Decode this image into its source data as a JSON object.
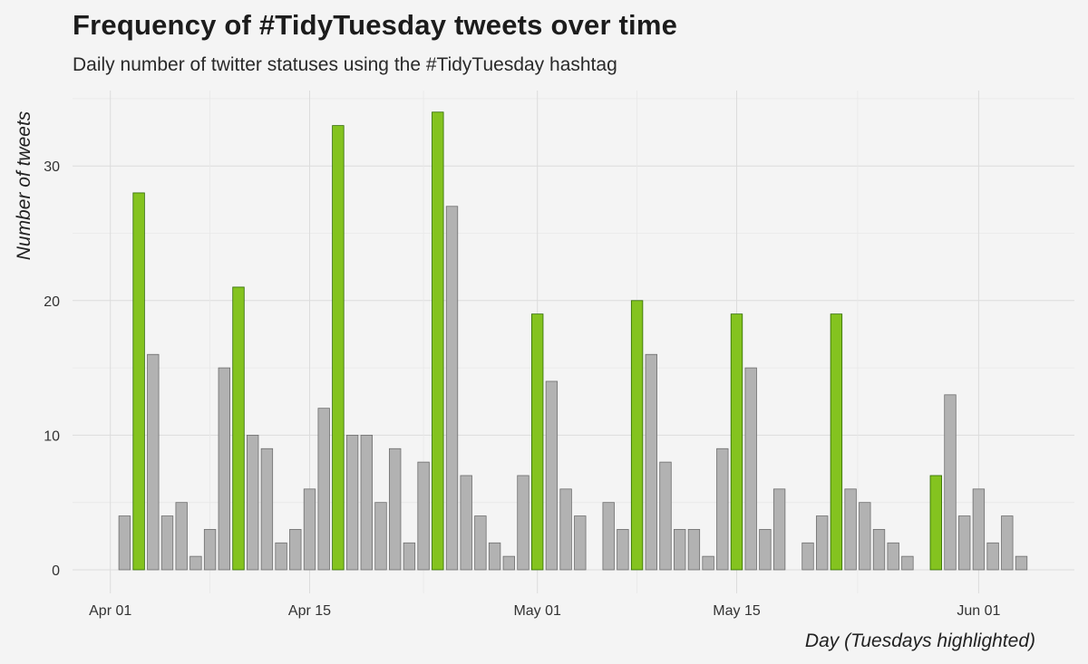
{
  "chart_data": {
    "type": "bar",
    "title": "Frequency of #TidyTuesday tweets over time",
    "subtitle": "Daily number of twitter statuses using the #TidyTuesday hashtag",
    "xlabel": "Day (Tuesdays highlighted)",
    "ylabel": "Number of tweets",
    "ylim": [
      0,
      35
    ],
    "yticks": [
      0,
      10,
      20,
      30
    ],
    "xlim": [
      "2018-03-31",
      "2018-06-06"
    ],
    "xticks": [
      {
        "date": "2018-04-01",
        "label": "Apr 01"
      },
      {
        "date": "2018-04-15",
        "label": "Apr 15"
      },
      {
        "date": "2018-05-01",
        "label": "May 01"
      },
      {
        "date": "2018-05-15",
        "label": "May 15"
      },
      {
        "date": "2018-06-01",
        "label": "Jun 01"
      }
    ],
    "grid": true,
    "highlight_color": "#84c31f",
    "highlight_border": "#2f6a00",
    "base_color": "#b2b2b2",
    "base_border": "#6e6e6e",
    "bars": [
      {
        "date": "2018-04-02",
        "value": 4,
        "tuesday": false
      },
      {
        "date": "2018-04-03",
        "value": 28,
        "tuesday": true
      },
      {
        "date": "2018-04-04",
        "value": 16,
        "tuesday": false
      },
      {
        "date": "2018-04-05",
        "value": 4,
        "tuesday": false
      },
      {
        "date": "2018-04-06",
        "value": 5,
        "tuesday": false
      },
      {
        "date": "2018-04-07",
        "value": 1,
        "tuesday": false
      },
      {
        "date": "2018-04-08",
        "value": 3,
        "tuesday": false
      },
      {
        "date": "2018-04-09",
        "value": 15,
        "tuesday": false
      },
      {
        "date": "2018-04-10",
        "value": 21,
        "tuesday": true
      },
      {
        "date": "2018-04-11",
        "value": 10,
        "tuesday": false
      },
      {
        "date": "2018-04-12",
        "value": 9,
        "tuesday": false
      },
      {
        "date": "2018-04-13",
        "value": 2,
        "tuesday": false
      },
      {
        "date": "2018-04-14",
        "value": 3,
        "tuesday": false
      },
      {
        "date": "2018-04-15",
        "value": 6,
        "tuesday": false
      },
      {
        "date": "2018-04-16",
        "value": 12,
        "tuesday": false
      },
      {
        "date": "2018-04-17",
        "value": 33,
        "tuesday": true
      },
      {
        "date": "2018-04-18",
        "value": 10,
        "tuesday": false
      },
      {
        "date": "2018-04-19",
        "value": 10,
        "tuesday": false
      },
      {
        "date": "2018-04-20",
        "value": 5,
        "tuesday": false
      },
      {
        "date": "2018-04-21",
        "value": 9,
        "tuesday": false
      },
      {
        "date": "2018-04-22",
        "value": 2,
        "tuesday": false
      },
      {
        "date": "2018-04-23",
        "value": 8,
        "tuesday": false
      },
      {
        "date": "2018-04-24",
        "value": 34,
        "tuesday": true
      },
      {
        "date": "2018-04-25",
        "value": 27,
        "tuesday": false
      },
      {
        "date": "2018-04-26",
        "value": 7,
        "tuesday": false
      },
      {
        "date": "2018-04-27",
        "value": 4,
        "tuesday": false
      },
      {
        "date": "2018-04-28",
        "value": 2,
        "tuesday": false
      },
      {
        "date": "2018-04-29",
        "value": 1,
        "tuesday": false
      },
      {
        "date": "2018-04-30",
        "value": 7,
        "tuesday": false
      },
      {
        "date": "2018-05-01",
        "value": 19,
        "tuesday": true
      },
      {
        "date": "2018-05-02",
        "value": 14,
        "tuesday": false
      },
      {
        "date": "2018-05-03",
        "value": 6,
        "tuesday": false
      },
      {
        "date": "2018-05-04",
        "value": 4,
        "tuesday": false
      },
      {
        "date": "2018-05-06",
        "value": 5,
        "tuesday": false
      },
      {
        "date": "2018-05-07",
        "value": 3,
        "tuesday": false
      },
      {
        "date": "2018-05-08",
        "value": 20,
        "tuesday": true
      },
      {
        "date": "2018-05-09",
        "value": 16,
        "tuesday": false
      },
      {
        "date": "2018-05-10",
        "value": 8,
        "tuesday": false
      },
      {
        "date": "2018-05-11",
        "value": 3,
        "tuesday": false
      },
      {
        "date": "2018-05-12",
        "value": 3,
        "tuesday": false
      },
      {
        "date": "2018-05-13",
        "value": 1,
        "tuesday": false
      },
      {
        "date": "2018-05-14",
        "value": 9,
        "tuesday": false
      },
      {
        "date": "2018-05-15",
        "value": 19,
        "tuesday": true
      },
      {
        "date": "2018-05-16",
        "value": 15,
        "tuesday": false
      },
      {
        "date": "2018-05-17",
        "value": 3,
        "tuesday": false
      },
      {
        "date": "2018-05-18",
        "value": 6,
        "tuesday": false
      },
      {
        "date": "2018-05-20",
        "value": 2,
        "tuesday": false
      },
      {
        "date": "2018-05-21",
        "value": 4,
        "tuesday": false
      },
      {
        "date": "2018-05-22",
        "value": 19,
        "tuesday": true
      },
      {
        "date": "2018-05-23",
        "value": 6,
        "tuesday": false
      },
      {
        "date": "2018-05-24",
        "value": 5,
        "tuesday": false
      },
      {
        "date": "2018-05-25",
        "value": 3,
        "tuesday": false
      },
      {
        "date": "2018-05-26",
        "value": 2,
        "tuesday": false
      },
      {
        "date": "2018-05-27",
        "value": 1,
        "tuesday": false
      },
      {
        "date": "2018-05-29",
        "value": 7,
        "tuesday": true
      },
      {
        "date": "2018-05-30",
        "value": 13,
        "tuesday": false
      },
      {
        "date": "2018-05-31",
        "value": 4,
        "tuesday": false
      },
      {
        "date": "2018-06-01",
        "value": 6,
        "tuesday": false
      },
      {
        "date": "2018-06-02",
        "value": 2,
        "tuesday": false
      },
      {
        "date": "2018-06-03",
        "value": 4,
        "tuesday": false
      },
      {
        "date": "2018-06-04",
        "value": 1,
        "tuesday": false
      }
    ]
  }
}
